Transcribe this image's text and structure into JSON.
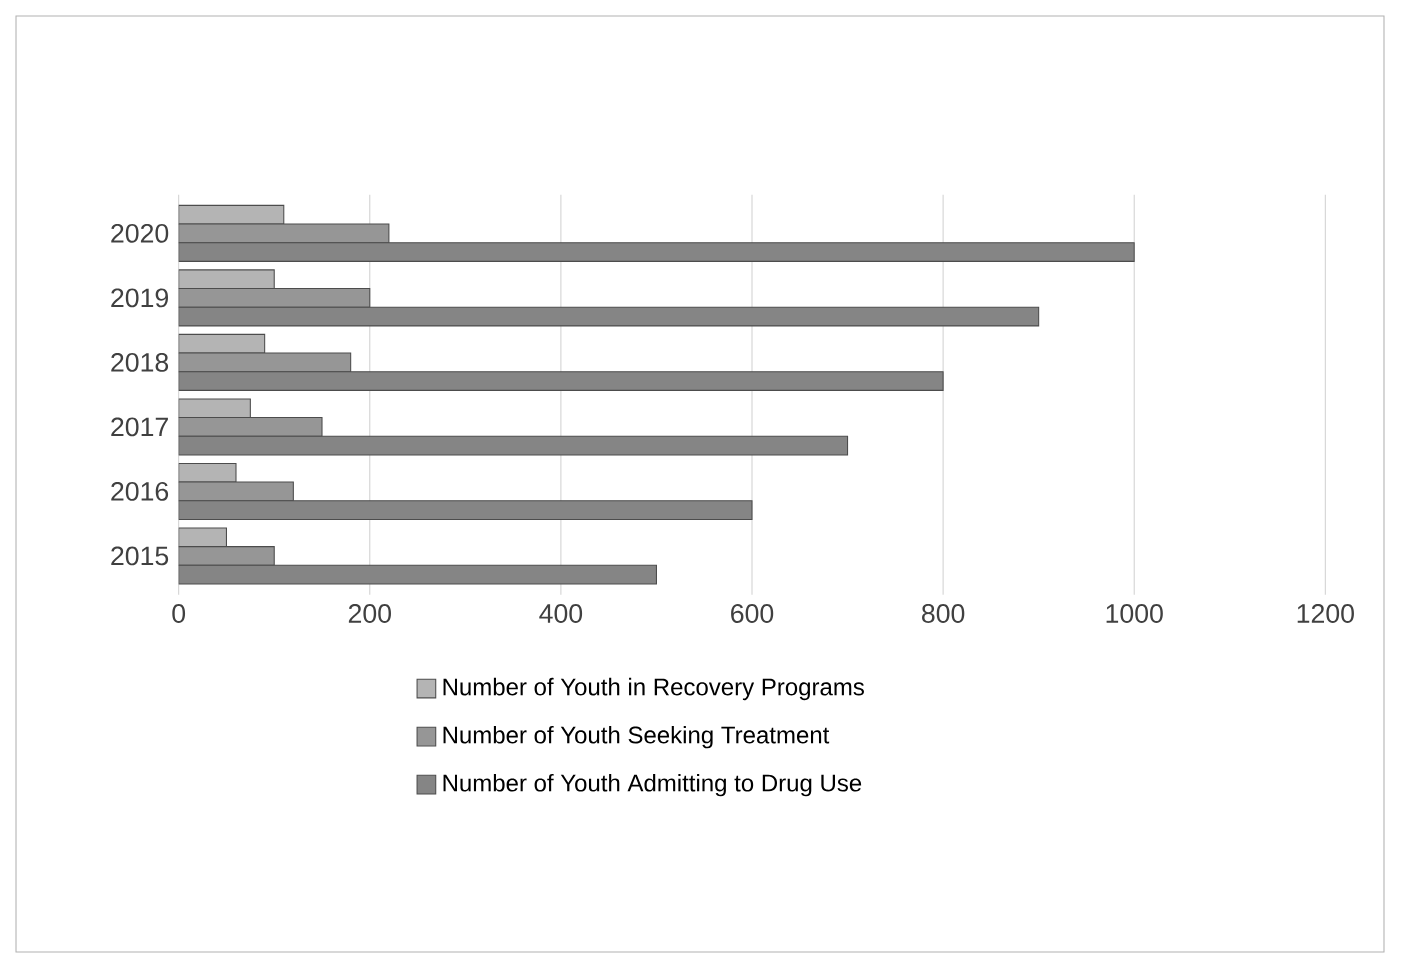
{
  "chart_data": {
    "type": "bar",
    "orientation": "horizontal",
    "categories": [
      "2020",
      "2019",
      "2018",
      "2017",
      "2016",
      "2015"
    ],
    "series": [
      {
        "name": "Number of Youth in Recovery Programs",
        "color": "#b4b4b4",
        "values": [
          110,
          100,
          90,
          75,
          60,
          50
        ]
      },
      {
        "name": "Number of Youth Seeking Treatment",
        "color": "#969696",
        "values": [
          220,
          200,
          180,
          150,
          120,
          100
        ]
      },
      {
        "name": "Number of Youth Admitting to Drug Use",
        "color": "#858585",
        "values": [
          1000,
          900,
          800,
          700,
          600,
          500
        ]
      }
    ],
    "xlim": [
      0,
      1200
    ],
    "xticks": [
      0,
      200,
      400,
      600,
      800,
      1000,
      1200
    ],
    "grid": "x",
    "legend": "bottom"
  }
}
